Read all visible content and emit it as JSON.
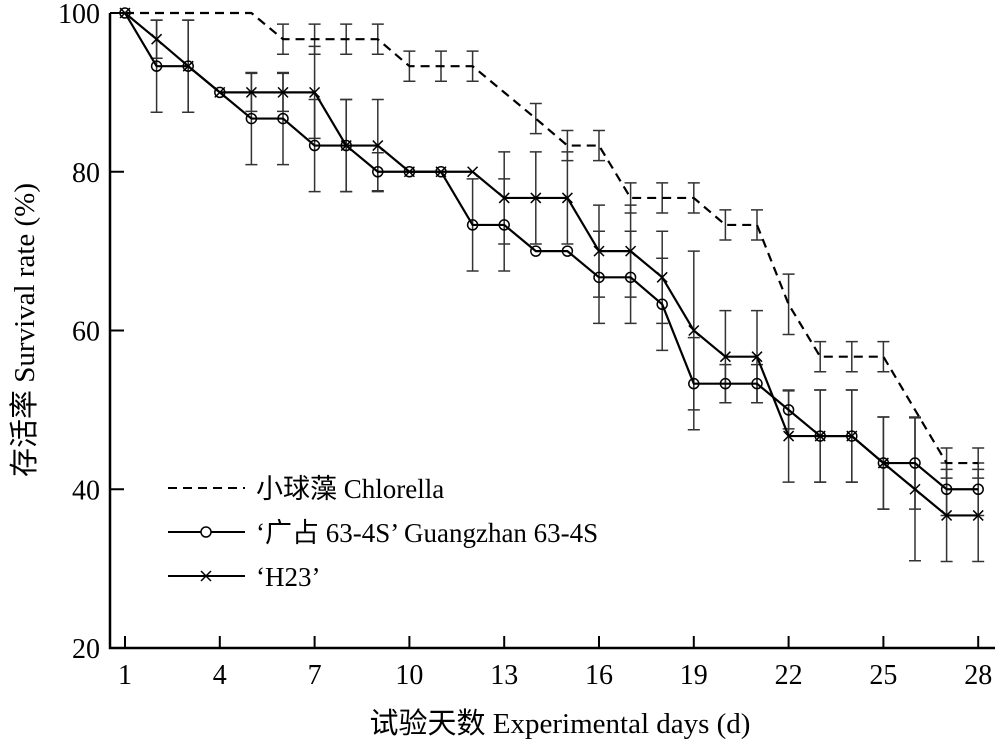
{
  "chart_data": {
    "type": "line",
    "title": "",
    "xlabel": "试验天数 Experimental days (d)",
    "ylabel": "存活率 Survival rate (%)",
    "xlim": [
      1,
      28
    ],
    "ylim": [
      20,
      100
    ],
    "xticks": [
      1,
      4,
      7,
      10,
      13,
      16,
      19,
      22,
      25,
      28
    ],
    "yticks": [
      20,
      40,
      60,
      80,
      100
    ],
    "grid": false,
    "legend_position": "bottom-left",
    "x": [
      1,
      2,
      3,
      4,
      5,
      6,
      7,
      8,
      9,
      10,
      11,
      12,
      13,
      14,
      15,
      16,
      17,
      18,
      19,
      20,
      21,
      22,
      23,
      24,
      25,
      26,
      27,
      28
    ],
    "series": [
      {
        "name": "小球藻 Chlorella",
        "style": "dashed",
        "marker": "none",
        "values": [
          100,
          100,
          100,
          100,
          100,
          96.7,
          96.7,
          96.7,
          96.7,
          93.3,
          93.3,
          93.3,
          90,
          86.7,
          83.3,
          83.3,
          76.7,
          76.7,
          76.7,
          73.3,
          73.3,
          63.3,
          56.7,
          56.7,
          56.7,
          50,
          43.3,
          43.3
        ],
        "errors": [
          0,
          0,
          0,
          0,
          0,
          1.9,
          1.9,
          1.9,
          1.9,
          1.9,
          1.9,
          1.9,
          0,
          1.9,
          1.9,
          1.9,
          1.9,
          1.9,
          1.9,
          1.9,
          1.9,
          3.8,
          1.9,
          1.9,
          1.9,
          0,
          1.9,
          1.9
        ]
      },
      {
        "name": "‘广占 63-4S’ Guangzhan 63-4S",
        "style": "solid",
        "marker": "circle",
        "values": [
          100,
          93.3,
          93.3,
          90,
          86.7,
          86.7,
          83.3,
          83.3,
          80,
          80,
          80,
          73.3,
          73.3,
          70,
          70,
          66.7,
          66.7,
          63.3,
          53.3,
          53.3,
          53.3,
          50,
          46.7,
          46.7,
          43.3,
          43.3,
          40,
          40
        ],
        "errors": [
          0,
          5.8,
          5.8,
          0,
          5.8,
          5.8,
          5.8,
          5.8,
          2.4,
          0,
          0,
          5.8,
          5.8,
          0,
          0,
          5.8,
          5.8,
          5.8,
          5.8,
          2.4,
          2.4,
          2.4,
          5.8,
          5.8,
          5.8,
          5.8,
          3.3,
          3.3
        ]
      },
      {
        "name": "‘H23’",
        "style": "solid",
        "marker": "x",
        "values": [
          100,
          96.7,
          93.3,
          90,
          90,
          90,
          90,
          83.3,
          83.3,
          80,
          80,
          80,
          76.7,
          76.7,
          76.7,
          70,
          70,
          66.7,
          60,
          56.7,
          56.7,
          46.7,
          46.7,
          46.7,
          43.3,
          40,
          36.7,
          36.7
        ],
        "errors": [
          0,
          2.4,
          5.8,
          0,
          2.4,
          2.4,
          5.8,
          5.8,
          5.8,
          0,
          0,
          0,
          5.8,
          5.8,
          5.8,
          5.8,
          5.8,
          5.8,
          10,
          5.8,
          5.8,
          5.8,
          5.8,
          5.8,
          5.8,
          9,
          5.8,
          5.8
        ]
      }
    ]
  }
}
